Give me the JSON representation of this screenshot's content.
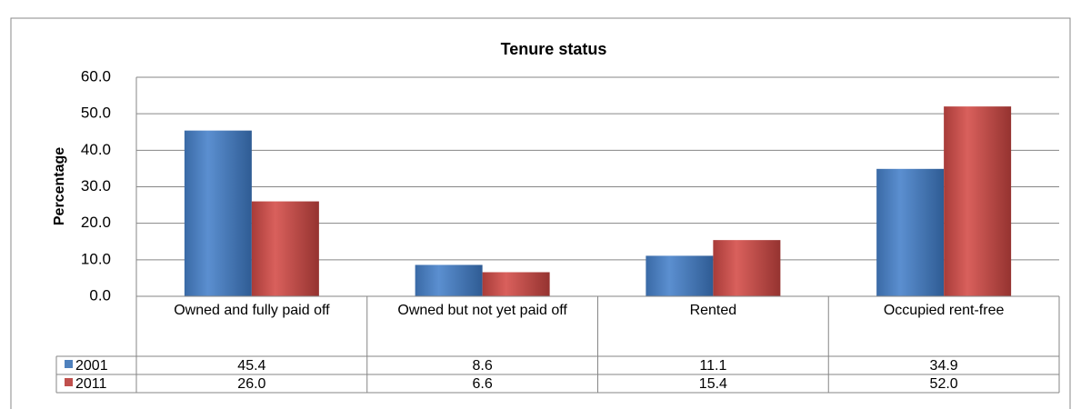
{
  "chart_data": {
    "type": "bar",
    "title": "Tenure status",
    "y_label": "Percentage",
    "categories": [
      "Owned and fully paid off",
      "Owned but not yet paid off",
      "Rented",
      "Occupied rent-free"
    ],
    "series": [
      {
        "name": "2001",
        "color": "#4f81bd",
        "values": [
          45.4,
          8.6,
          11.1,
          34.9
        ],
        "value_labels": [
          "45.4",
          "8.6",
          "11.1",
          "34.9"
        ]
      },
      {
        "name": "2011",
        "color": "#c0504d",
        "values": [
          26.0,
          6.6,
          15.4,
          52.0
        ],
        "value_labels": [
          "26.0",
          "6.6",
          "15.4",
          "52.0"
        ]
      }
    ],
    "ylim": [
      0,
      60
    ],
    "yticks": [
      {
        "value": 0,
        "label": "0.0"
      },
      {
        "value": 10,
        "label": "10.0"
      },
      {
        "value": 20,
        "label": "20.0"
      },
      {
        "value": 30,
        "label": "30.0"
      },
      {
        "value": 40,
        "label": "40.0"
      },
      {
        "value": 50,
        "label": "50.0"
      },
      {
        "value": 60,
        "label": "60.0"
      }
    ],
    "grid": true,
    "legend": "data-table"
  }
}
